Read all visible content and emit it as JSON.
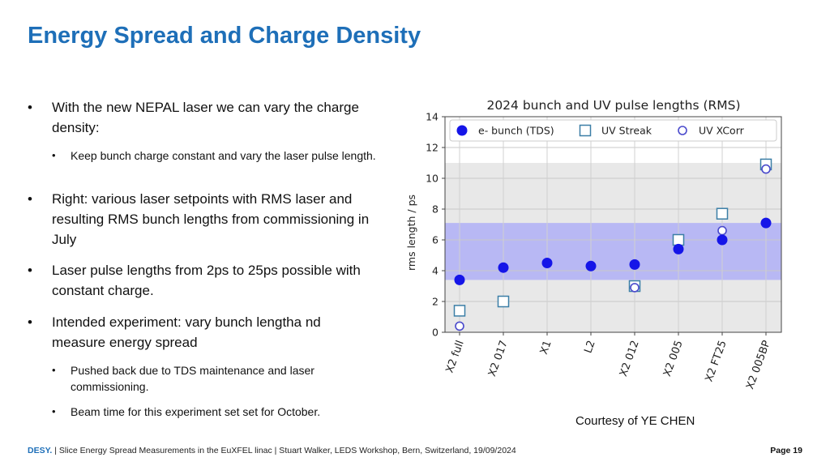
{
  "slide": {
    "title": "Energy Spread and Charge Density",
    "bullets": [
      {
        "text": "With the new NEPAL laser we can vary the charge density:",
        "sub": [
          "Keep bunch charge constant and vary the laser pulse length."
        ]
      },
      {
        "text": "Right: various laser setpoints with RMS laser and resulting RMS bunch lengths from commissioning in July",
        "sub": []
      },
      {
        "text": "Laser pulse lengths from 2ps to 25ps possible with constant charge.",
        "sub": []
      },
      {
        "text": "Intended experiment: vary bunch lengtha nd measure energy spread",
        "sub": [
          "Pushed back due to TDS maintenance and laser commissioning.",
          "Beam time for this experiment set set for October."
        ]
      }
    ],
    "courtesy": "Courtesy of YE CHEN",
    "footer": {
      "brand": "DESY.",
      "text": " | Slice Energy Spread Measurements in the EuXFEL linac | Stuart Walker, LEDS Workshop, Bern, Switzerland, 19/09/2024",
      "page": "Page 19"
    }
  },
  "chart_data": {
    "type": "scatter",
    "title": "2024 bunch and UV pulse lengths (RMS)",
    "xlabel": "",
    "ylabel": "rms length / ps",
    "categories": [
      "X2 full",
      "X2 017",
      "X1",
      "L2",
      "X2 012",
      "X2 005",
      "X2 FT25",
      "X2 005BP"
    ],
    "ylim": [
      0,
      14
    ],
    "yticks": [
      0,
      2,
      4,
      6,
      8,
      10,
      12,
      14
    ],
    "grid": true,
    "legend_position": "top",
    "bands": [
      {
        "y0": 0,
        "y1": 11,
        "color": "#e8e8e8"
      },
      {
        "y0": 3.4,
        "y1": 7.1,
        "color": "#b8b8f4"
      }
    ],
    "series": [
      {
        "name": "e- bunch (TDS)",
        "marker": "filled-circle",
        "color": "#1515e8",
        "values": [
          3.4,
          4.2,
          4.5,
          4.3,
          4.4,
          5.4,
          6.0,
          7.1
        ]
      },
      {
        "name": "UV Streak",
        "marker": "open-square",
        "color": "#3b7ea6",
        "values": [
          1.4,
          2.0,
          null,
          null,
          3.0,
          6.0,
          7.7,
          10.9
        ]
      },
      {
        "name": "UV XCorr",
        "marker": "open-circle",
        "color": "#4a4acc",
        "values": [
          0.4,
          null,
          null,
          null,
          2.9,
          null,
          6.6,
          10.6
        ]
      }
    ]
  }
}
